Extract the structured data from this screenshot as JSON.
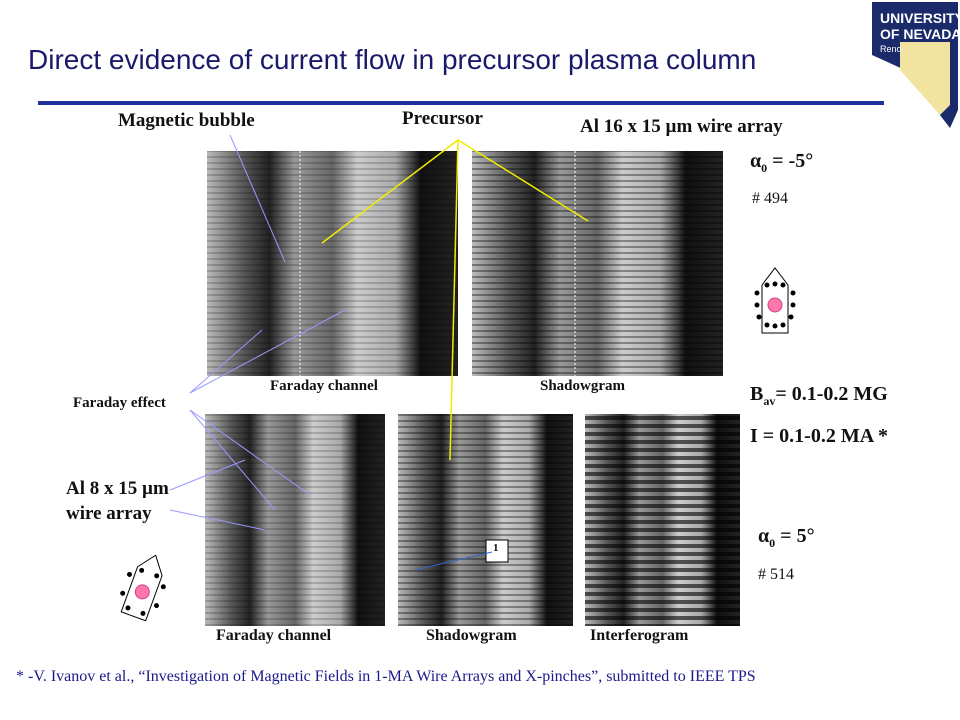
{
  "header": {
    "title": "Direct evidence of current flow in precursor plasma column",
    "logo": {
      "line1": "UNIVERSITY",
      "line2": "OF NEVADA",
      "line3": "Reno"
    }
  },
  "labels": {
    "magnetic_bubble": "Magnetic bubble",
    "precursor": "Precursor",
    "faraday_effect": "Faraday effect",
    "marker": "1"
  },
  "top_row": {
    "wire_array": "Al 16 x 15 µm wire array",
    "angle": {
      "symbol": "α",
      "sub": "0",
      "rest": " = -5°"
    },
    "shot": "# 494",
    "captions": [
      "Faraday channel",
      "Shadowgram"
    ]
  },
  "bottom_row": {
    "wire_array_line1": "Al 8 x 15 µm",
    "wire_array_line2": "wire array",
    "angle": {
      "symbol": "α",
      "sub": "0",
      "rest": " = 5°"
    },
    "shot": "# 514",
    "captions": [
      "Faraday channel",
      "Shadowgram",
      "Interferogram"
    ]
  },
  "results": {
    "field": {
      "symbol": "B",
      "sub": "av",
      "rest": "= 0.1-0.2 MG"
    },
    "current": "I = 0.1-0.2 MA *"
  },
  "footnote": "* -V. Ivanov et al., “Investigation of Magnetic Fields in 1-MA Wire Arrays and X-pinches”, submitted to IEEE TPS"
}
